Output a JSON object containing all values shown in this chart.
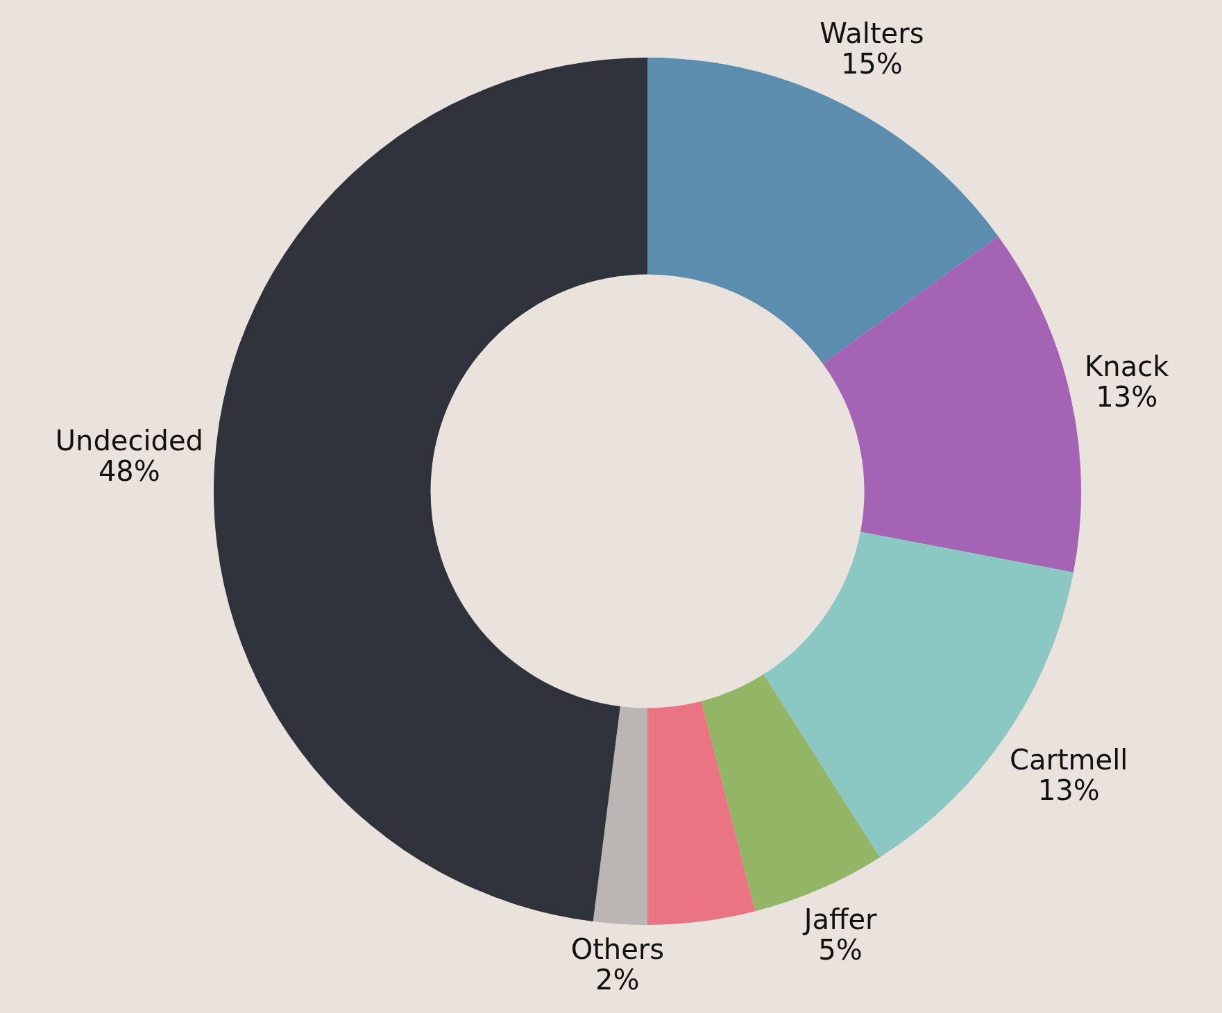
{
  "chart_data": {
    "type": "donut",
    "categories": [
      "Walters",
      "Knack",
      "Cartmell",
      "Jaffer",
      null,
      "Others",
      "Undecided"
    ],
    "values": [
      15,
      13,
      13,
      5,
      4,
      2,
      48
    ],
    "value_labels": [
      "15%",
      "13%",
      "13%",
      "5%",
      null,
      "2%",
      "48%"
    ],
    "colors": [
      "#5b8eae",
      "#a463b5",
      "#8cc8c3",
      "#93b566",
      "#e97482",
      "#bab6b4",
      "#2f323b"
    ],
    "legend": false
  }
}
